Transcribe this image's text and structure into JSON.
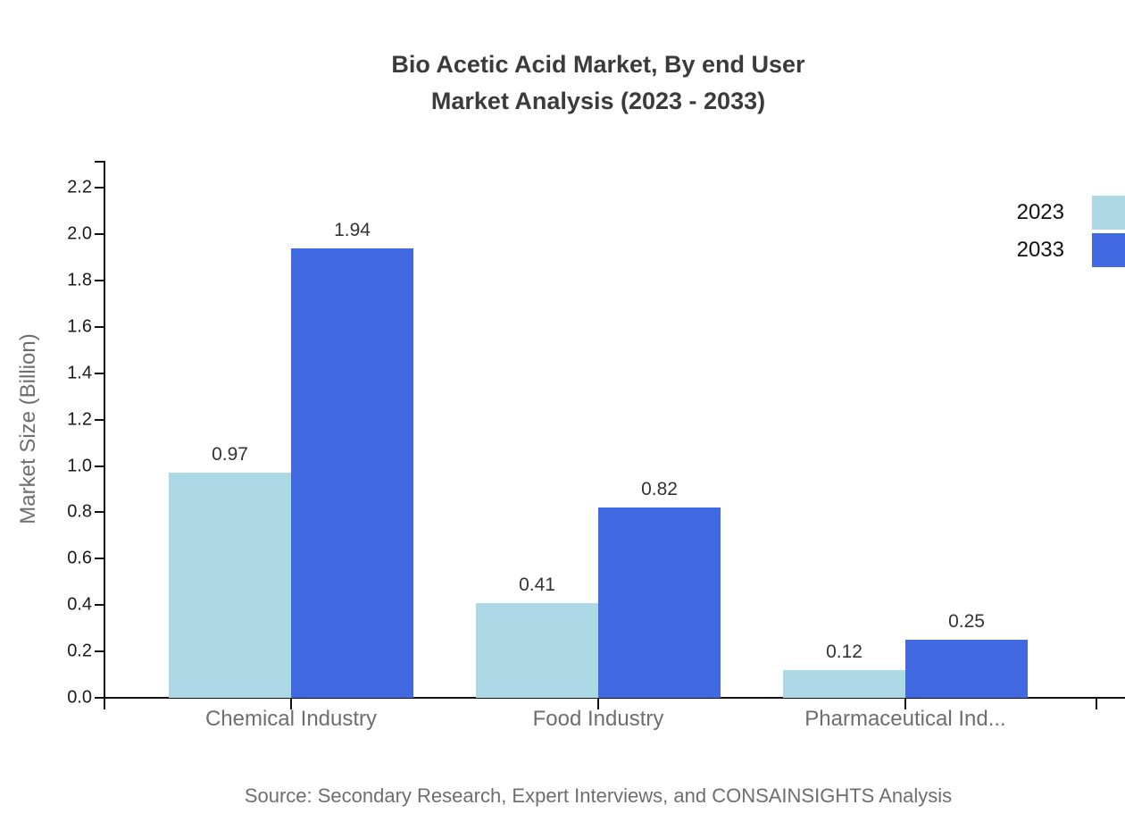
{
  "title": {
    "line1": "Bio Acetic Acid Market, By end User",
    "line2": "Market Analysis (2023 - 2033)"
  },
  "y_axis": {
    "label": "Market Size (Billion)",
    "tick_labels": [
      "0.0",
      "0.2",
      "0.4",
      "0.6",
      "0.8",
      "1.0",
      "1.2",
      "1.4",
      "1.6",
      "1.8",
      "2.0",
      "2.2"
    ]
  },
  "source_note": "Source: Secondary Research, Expert Interviews, and CONSAINSIGHTS Analysis",
  "chart_data": {
    "type": "bar",
    "title": "Bio Acetic Acid Market, By end User Market Analysis (2023 - 2033)",
    "categories": [
      "Chemical Industry",
      "Food Industry",
      "Pharmaceutical Ind..."
    ],
    "series": [
      {
        "name": "2023",
        "color": "#ADD8E6",
        "values": [
          0.97,
          0.41,
          0.12
        ]
      },
      {
        "name": "2033",
        "color": "#4169E1",
        "values": [
          1.94,
          0.82,
          0.25
        ]
      }
    ],
    "xlabel": "",
    "ylabel": "Market Size (Billion)",
    "ylim": [
      0,
      2.2
    ],
    "ytick_step": 0.2,
    "grid": false,
    "legend_position": "top-right",
    "value_labels": true
  },
  "colors": {
    "axis": "#111111",
    "title_text": "#3b3b3b",
    "muted_text": "#6e6e6e",
    "tick_text": "#1a1a1a",
    "value_text": "#333333"
  }
}
